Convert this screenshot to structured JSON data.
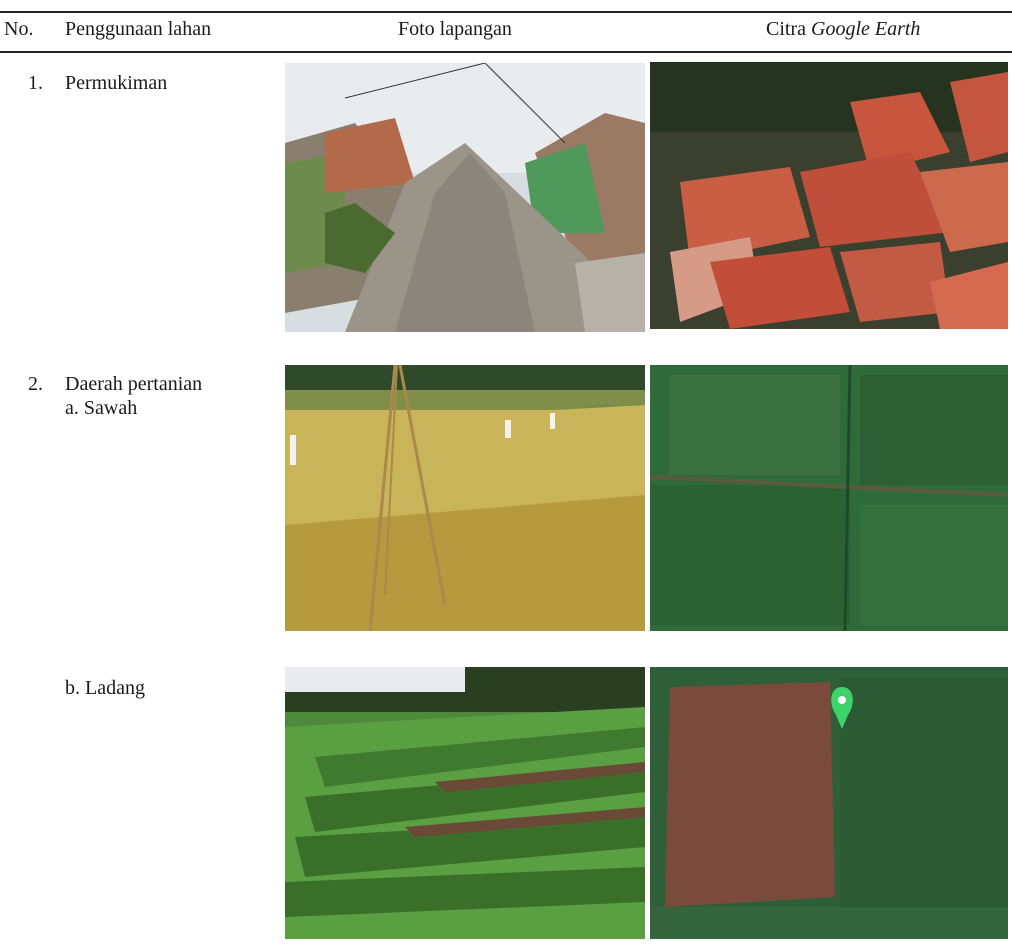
{
  "table": {
    "headers": {
      "no": "No.",
      "land_use": "Penggunaan lahan",
      "field_photo": "Foto lapangan",
      "imagery_prefix": "Citra ",
      "imagery_italic": "Google Earth"
    },
    "rows": [
      {
        "no": "1.",
        "label": "Permukiman",
        "sub_label": ""
      },
      {
        "no": "2.",
        "label": "Daerah pertanian",
        "sub_label": "a. Sawah"
      },
      {
        "no": "",
        "label": "",
        "sub_label": "b. Ladang"
      }
    ]
  },
  "images": {
    "row1_photo": "photo-settlement-street",
    "row1_earth": "satellite-red-roofs",
    "row2_photo": "photo-rice-field",
    "row2_earth": "satellite-green-paddies",
    "row3_photo": "photo-crop-field",
    "row3_earth": "satellite-field-with-pin"
  },
  "colors": {
    "rule": "#222222",
    "roof": "#c8553d",
    "rice": "#c9b45a",
    "paddy": "#2f6b3a",
    "pin": "#3fd26a"
  }
}
